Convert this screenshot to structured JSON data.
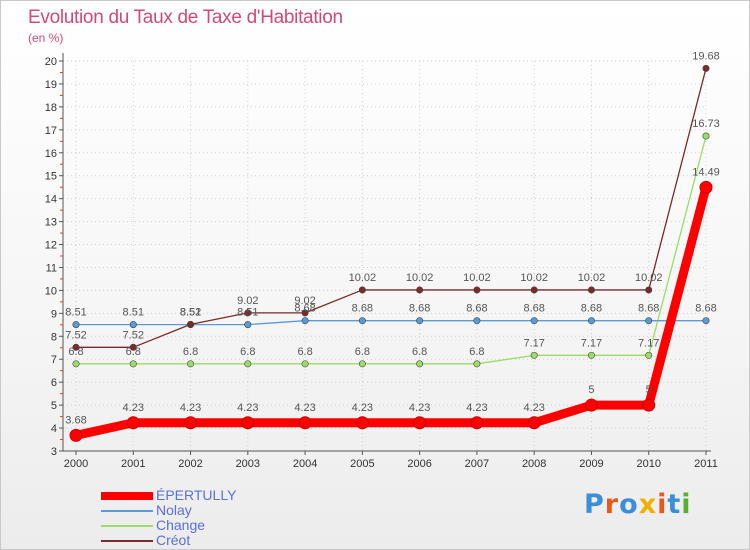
{
  "chart_data": {
    "type": "line",
    "title": "Evolution du Taux de Taxe d'Habitation",
    "ylabel": "(en %)",
    "xlabel": "",
    "x": [
      "2000",
      "2001",
      "2002",
      "2003",
      "2004",
      "2005",
      "2006",
      "2007",
      "2008",
      "2009",
      "2010",
      "2011"
    ],
    "ylim": [
      3,
      20
    ],
    "yticks": [
      "3",
      "4",
      "5",
      "6",
      "7",
      "8",
      "9",
      "10",
      "11",
      "12",
      "13",
      "14",
      "15",
      "16",
      "17",
      "18",
      "19",
      "20"
    ],
    "legend_position": "bottom-left",
    "series": [
      {
        "name": "ÉPERTULLY",
        "color": "#ff0000",
        "values": [
          3.68,
          4.23,
          4.23,
          4.23,
          4.23,
          4.23,
          4.23,
          4.23,
          4.23,
          5,
          5,
          14.49
        ],
        "labels": [
          "3.68",
          "4.23",
          "4.23",
          "4.23",
          "4.23",
          "4.23",
          "4.23",
          "4.23",
          "4.23",
          "5",
          "5",
          "14.49"
        ]
      },
      {
        "name": "Nolay",
        "color": "#5b9bd5",
        "values": [
          8.51,
          8.51,
          8.51,
          8.51,
          8.68,
          8.68,
          8.68,
          8.68,
          8.68,
          8.68,
          8.68,
          8.68
        ],
        "labels": [
          "8.51",
          "8.51",
          "8.51",
          "8.51",
          "8.68",
          "8.68",
          "8.68",
          "8.68",
          "8.68",
          "8.68",
          "8.68",
          "8.68"
        ]
      },
      {
        "name": "Change",
        "color": "#99dd66",
        "values": [
          6.8,
          6.8,
          6.8,
          6.8,
          6.8,
          6.8,
          6.8,
          6.8,
          7.17,
          7.17,
          7.17,
          16.73
        ],
        "labels": [
          "6.8",
          "6.8",
          "6.8",
          "6.8",
          "6.8",
          "6.8",
          "6.8",
          "6.8",
          "7.17",
          "7.17",
          "7.17",
          "16.73"
        ]
      },
      {
        "name": "Créot",
        "color": "#7a2a2a",
        "values": [
          7.52,
          7.52,
          8.52,
          9.02,
          9.02,
          10.02,
          10.02,
          10.02,
          10.02,
          10.02,
          10.02,
          19.68
        ],
        "labels": [
          "7.52",
          "7.52",
          "8.52",
          "9.02",
          "9.02",
          "10.02",
          "10.02",
          "10.02",
          "10.02",
          "10.02",
          "10.02",
          "19.68"
        ]
      }
    ]
  },
  "logo": {
    "letters": [
      "P",
      "r",
      "o",
      "x",
      "i",
      "t",
      "i"
    ],
    "colors": [
      "#3a8fd8",
      "#e85a1c",
      "#3a8fd8",
      "#f0b000",
      "#e85a1c",
      "#3a8fd8",
      "#58b030"
    ]
  }
}
